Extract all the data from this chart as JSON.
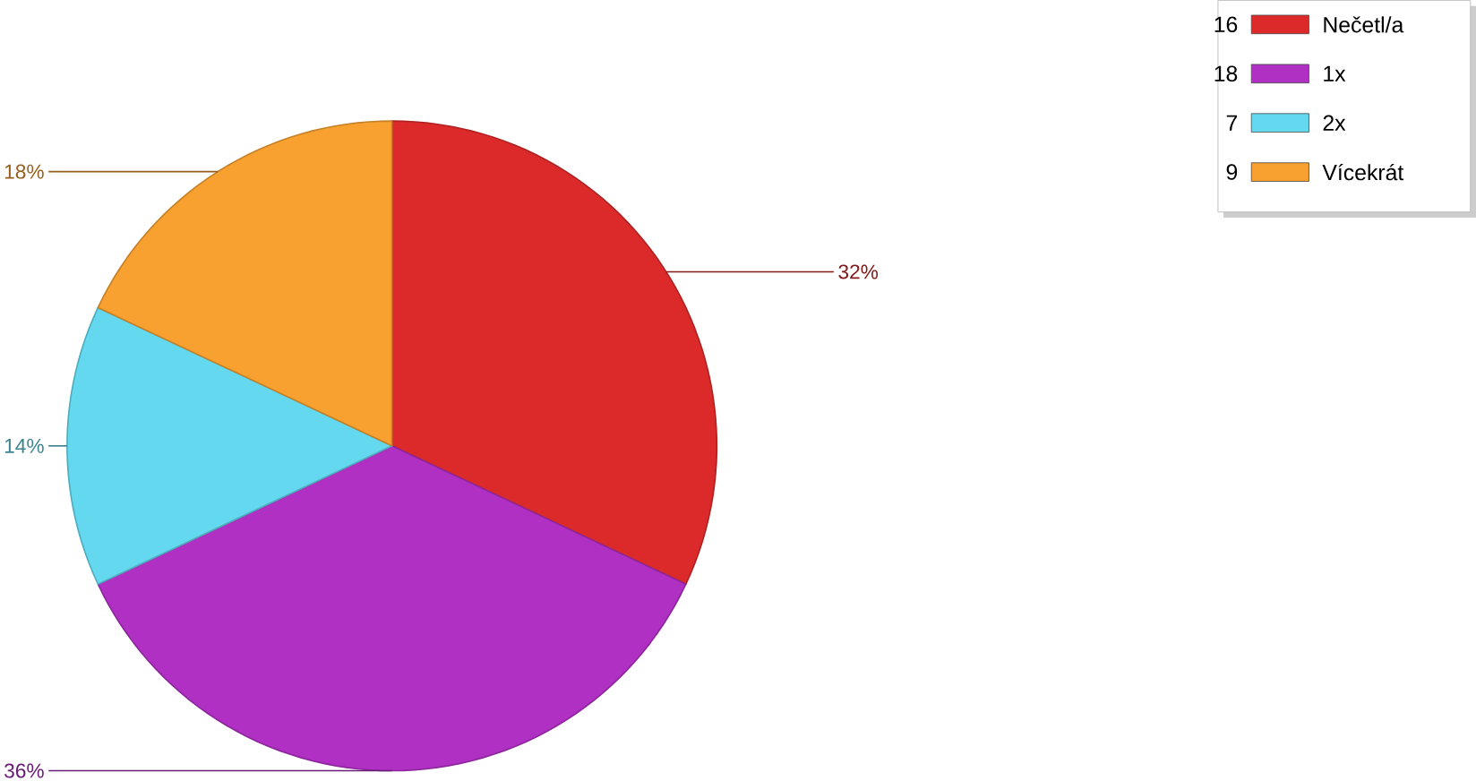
{
  "chart_data": {
    "type": "pie",
    "categories": [
      "Nečetl/a",
      "1x",
      "2x",
      "Vícekrát"
    ],
    "values": [
      32,
      36,
      14,
      18
    ],
    "colors": [
      "#dc2a2a",
      "#b030c4",
      "#64d8ee",
      "#f8a030"
    ],
    "value_labels": [
      "32%",
      "36%",
      "14%",
      "18%"
    ],
    "annotations": [
      "16",
      "18",
      "7",
      "9"
    ],
    "legend": "top right"
  }
}
